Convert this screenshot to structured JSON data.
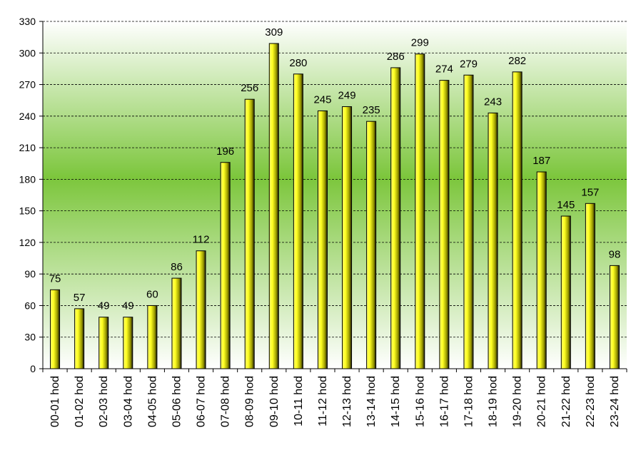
{
  "chart_data": {
    "type": "bar",
    "categories": [
      "00-01 hod",
      "01-02 hod",
      "02-03 hod",
      "03-04 hod",
      "04-05 hod",
      "05-06 hod",
      "06-07 hod",
      "07-08 hod",
      "08-09 hod",
      "09-10 hod",
      "10-11 hod",
      "11-12 hod",
      "12-13 hod",
      "13-14 hod",
      "14-15 hod",
      "15-16 hod",
      "16-17 hod",
      "17-18 hod",
      "18-19 hod",
      "19-20 hod",
      "20-21 hod",
      "21-22 hod",
      "22-23 hod",
      "23-24 hod"
    ],
    "values": [
      75,
      57,
      49,
      49,
      60,
      86,
      112,
      196,
      256,
      309,
      280,
      245,
      249,
      235,
      286,
      299,
      274,
      279,
      243,
      282,
      187,
      145,
      157,
      98
    ],
    "title": "",
    "xlabel": "",
    "ylabel": "",
    "ylim": [
      0,
      330
    ],
    "yticks": [
      0,
      30,
      60,
      90,
      120,
      150,
      180,
      210,
      240,
      270,
      300,
      330
    ],
    "grid": true,
    "legend": "none",
    "colors": {
      "bar_light": "#ffff33",
      "bar_dark": "#1a1a00",
      "plot_bg_mid": "#7cc63c",
      "plot_bg_edge": "#ffffff",
      "gridline": "#000000"
    }
  }
}
